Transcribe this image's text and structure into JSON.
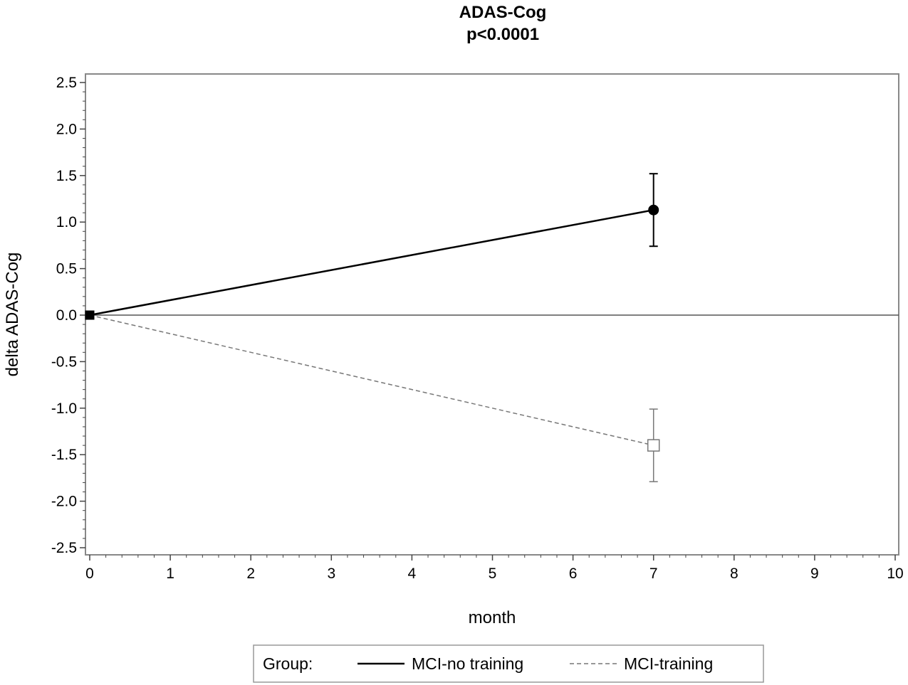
{
  "chart_data": {
    "type": "line",
    "title": "ADAS-Cog",
    "subtitle": "p<0.0001",
    "xlabel": "month",
    "ylabel": "delta ADAS-Cog",
    "xlim": [
      0,
      10
    ],
    "ylim": [
      -2.5,
      2.5
    ],
    "x_ticks": [
      0,
      1,
      2,
      3,
      4,
      5,
      6,
      7,
      8,
      9,
      10
    ],
    "x_tick_labels": [
      "0",
      "1",
      "2",
      "3",
      "4",
      "5",
      "6",
      "7",
      "8",
      "9",
      "10"
    ],
    "y_ticks": [
      2.5,
      2.0,
      1.5,
      1.0,
      0.5,
      0.0,
      -0.5,
      -1.0,
      -1.5,
      -2.0,
      -2.5
    ],
    "y_tick_labels": [
      "2.5",
      "2.0",
      "1.5",
      "1.0",
      "0.5",
      "0.0",
      "-0.5",
      "-1.0",
      "-1.5",
      "-2.0",
      "-2.5"
    ],
    "reference_line_y": 0,
    "grid": false,
    "legend": {
      "position": "bottom",
      "label": "Group:"
    },
    "series": [
      {
        "name": "MCI-no training",
        "line_style": "solid",
        "color": "#000000",
        "marker": "filled-circle",
        "x": [
          0,
          7
        ],
        "y": [
          0.0,
          1.13
        ],
        "error_low": [
          0.0,
          0.74
        ],
        "error_high": [
          0.0,
          1.52
        ]
      },
      {
        "name": "MCI-training",
        "line_style": "dashed",
        "color": "#777777",
        "marker": "open-square",
        "x": [
          0,
          7
        ],
        "y": [
          0.0,
          -1.4
        ],
        "error_low": [
          0.0,
          -1.79
        ],
        "error_high": [
          0.0,
          -1.01
        ]
      }
    ]
  }
}
